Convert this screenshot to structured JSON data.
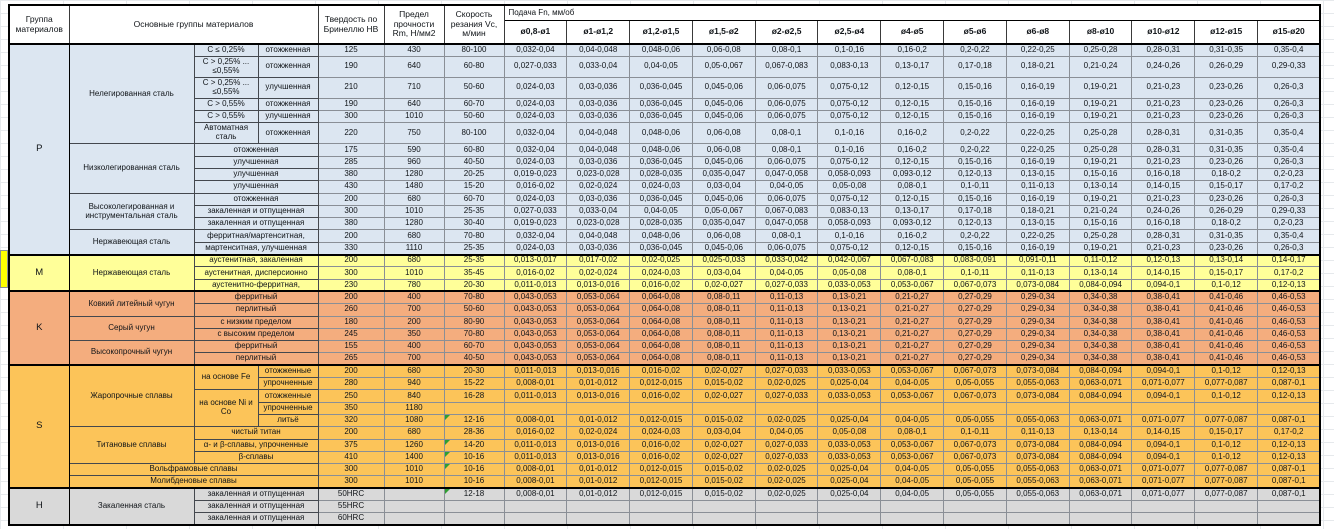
{
  "colors": {
    "group_p": "#dce6f1",
    "group_m": "#ffff99",
    "group_k": "#f4ad7e",
    "group_s": "#fcc459",
    "group_h": "#d9d9d9",
    "marker_green": "#2f9e33",
    "gutter_yellow": "#ffff00"
  },
  "table": {
    "header": {
      "col_group": "Группа материалов",
      "col_main": "Основные группы материалов",
      "col_hardness": "Твердость по Бринеллю НВ",
      "col_strength": "Предел прочности Rm, Н/мм2",
      "col_speed": "Скорость резания Vc, м/мин",
      "feed_title": "Подача Fn, мм/об",
      "feed_cols": [
        "ø0,8-ø1",
        "ø1-ø1,2",
        "ø1,2-ø1,5",
        "ø1,5-ø2",
        "ø2-ø2,5",
        "ø2,5-ø4",
        "ø4-ø5",
        "ø5-ø6",
        "ø6-ø8",
        "ø8-ø10",
        "ø10-ø12",
        "ø12-ø15",
        "ø15-ø20"
      ]
    },
    "feed_sets": {
      "A": [
        "0,032-0,04",
        "0,04-0,048",
        "0,048-0,06",
        "0,06-0,08",
        "0,08-0,1",
        "0,1-0,16",
        "0,16-0,2",
        "0,2-0,22",
        "0,22-0,25",
        "0,25-0,28",
        "0,28-0,31",
        "0,31-0,35",
        "0,35-0,4"
      ],
      "B": [
        "0,027-0,033",
        "0,033-0,04",
        "0,04-0,05",
        "0,05-0,067",
        "0,067-0,083",
        "0,083-0,13",
        "0,13-0,17",
        "0,17-0,18",
        "0,18-0,21",
        "0,21-0,24",
        "0,24-0,26",
        "0,26-0,29",
        "0,29-0,33"
      ],
      "C": [
        "0,024-0,03",
        "0,03-0,036",
        "0,036-0,045",
        "0,045-0,06",
        "0,06-0,075",
        "0,075-0,12",
        "0,12-0,15",
        "0,15-0,16",
        "0,16-0,19",
        "0,19-0,21",
        "0,21-0,23",
        "0,23-0,26",
        "0,26-0,3"
      ],
      "D": [
        "0,019-0,023",
        "0,023-0,028",
        "0,028-0,035",
        "0,035-0,047",
        "0,047-0,058",
        "0,058-0,093",
        "0,093-0,12",
        "0,12-0,13",
        "0,13-0,15",
        "0,15-0,16",
        "0,16-0,18",
        "0,18-0,2",
        "0,2-0,23"
      ],
      "E": [
        "0,016-0,02",
        "0,02-0,024",
        "0,024-0,03",
        "0,03-0,04",
        "0,04-0,05",
        "0,05-0,08",
        "0,08-0,1",
        "0,1-0,11",
        "0,11-0,13",
        "0,13-0,14",
        "0,14-0,15",
        "0,15-0,17",
        "0,17-0,2"
      ],
      "F": [
        "0,013-0,017",
        "0,017-0,02",
        "0,02-0,025",
        "0,025-0,033",
        "0,033-0,042",
        "0,042-0,067",
        "0,067-0,083",
        "0,083-0,091",
        "0,091-0,11",
        "0,11-0,12",
        "0,12-0,13",
        "0,13-0,14",
        "0,14-0,17"
      ],
      "G": [
        "0,011-0,013",
        "0,013-0,016",
        "0,016-0,02",
        "0,02-0,027",
        "0,027-0,033",
        "0,033-0,053",
        "0,053-0,067",
        "0,067-0,073",
        "0,073-0,084",
        "0,084-0,094",
        "0,094-0,1",
        "0,1-0,12",
        "0,12-0,13"
      ],
      "H": [
        "0,043-0,053",
        "0,053-0,064",
        "0,064-0,08",
        "0,08-0,11",
        "0,11-0,13",
        "0,13-0,21",
        "0,21-0,27",
        "0,27-0,29",
        "0,29-0,34",
        "0,34-0,38",
        "0,38-0,41",
        "0,41-0,46",
        "0,46-0,53"
      ],
      "I": [
        "0,008-0,01",
        "0,01-0,012",
        "0,012-0,015",
        "0,015-0,02",
        "0,02-0,025",
        "0,025-0,04",
        "0,04-0,05",
        "0,05-0,055",
        "0,055-0,063",
        "0,063-0,071",
        "0,071-0,077",
        "0,077-0,087",
        "0,087-0,1"
      ],
      "X": [
        "",
        "",
        "",
        "",
        "",
        "",
        "",
        "",
        "",
        "",
        "",
        "",
        ""
      ]
    },
    "rows": [
      {
        "cls": "p",
        "gs": 1,
        "labels": [
          {
            "t": "P",
            "rs": 15,
            "g": 1
          },
          {
            "t": "Нелегированная сталь",
            "rs": 6
          },
          {
            "t": "C ≤ 0,25%"
          },
          {
            "t": "отожженная"
          }
        ],
        "hb": "125",
        "rm": "430",
        "vc": "80-100",
        "feed": "A"
      },
      {
        "cls": "p",
        "tall": 1,
        "labels": [
          {
            "t": "C > 0,25% ... ≤0,55%"
          },
          {
            "t": "отожженная"
          }
        ],
        "hb": "190",
        "rm": "640",
        "vc": "60-80",
        "feed": "B"
      },
      {
        "cls": "p",
        "tall": 1,
        "labels": [
          {
            "t": "C > 0,25% ... ≤0,55%"
          },
          {
            "t": "улучшенная"
          }
        ],
        "hb": "210",
        "rm": "710",
        "vc": "50-60",
        "feed": "C"
      },
      {
        "cls": "p",
        "labels": [
          {
            "t": "C > 0,55%"
          },
          {
            "t": "отожженная"
          }
        ],
        "hb": "190",
        "rm": "640",
        "vc": "60-70",
        "feed": "C"
      },
      {
        "cls": "p",
        "labels": [
          {
            "t": "C > 0,55%"
          },
          {
            "t": "улучшенная"
          }
        ],
        "hb": "300",
        "rm": "1010",
        "vc": "50-60",
        "feed": "C"
      },
      {
        "cls": "p",
        "tall": 1,
        "labels": [
          {
            "t": "Автоматная сталь"
          },
          {
            "t": "отожженная"
          }
        ],
        "hb": "220",
        "rm": "750",
        "vc": "80-100",
        "feed": "A"
      },
      {
        "cls": "p",
        "labels": [
          {
            "t": "Низколегированная сталь",
            "rs": 4
          },
          {
            "t": "отожженная",
            "cs": 2
          }
        ],
        "hb": "175",
        "rm": "590",
        "vc": "60-80",
        "feed": "A"
      },
      {
        "cls": "p",
        "labels": [
          {
            "t": "улучшенная",
            "cs": 2
          }
        ],
        "hb": "285",
        "rm": "960",
        "vc": "40-50",
        "feed": "C"
      },
      {
        "cls": "p",
        "labels": [
          {
            "t": "улучшенная",
            "cs": 2
          }
        ],
        "hb": "380",
        "rm": "1280",
        "vc": "20-25",
        "feed": "D"
      },
      {
        "cls": "p",
        "labels": [
          {
            "t": "улучшенная",
            "cs": 2
          }
        ],
        "hb": "430",
        "rm": "1480",
        "vc": "15-20",
        "feed": "E"
      },
      {
        "cls": "p",
        "labels": [
          {
            "t": "Высоколегированная и инструментальная сталь",
            "rs": 3
          },
          {
            "t": "отожженная",
            "cs": 2
          }
        ],
        "hb": "200",
        "rm": "680",
        "vc": "60-70",
        "feed": "C"
      },
      {
        "cls": "p",
        "labels": [
          {
            "t": "закаленная и отпущенная",
            "cs": 2
          }
        ],
        "hb": "300",
        "rm": "1010",
        "vc": "25-35",
        "feed": "B"
      },
      {
        "cls": "p",
        "labels": [
          {
            "t": "закаленная и отпущенная",
            "cs": 2
          }
        ],
        "hb": "380",
        "rm": "1280",
        "vc": "30-40",
        "feed": "D"
      },
      {
        "cls": "p",
        "labels": [
          {
            "t": "Нержавеющая сталь",
            "rs": 2
          },
          {
            "t": "ферритная/мартенситная,",
            "cs": 2
          }
        ],
        "hb": "200",
        "rm": "680",
        "vc": "70-80",
        "feed": "A"
      },
      {
        "cls": "p",
        "labels": [
          {
            "t": "мартенситная, улучшенная",
            "cs": 2
          }
        ],
        "hb": "330",
        "rm": "1110",
        "vc": "25-35",
        "feed": "C"
      },
      {
        "cls": "m",
        "gs": 1,
        "labels": [
          {
            "t": "M",
            "rs": 3,
            "g": 1
          },
          {
            "t": "Нержавеющая сталь",
            "rs": 3
          },
          {
            "t": "аустенитная, закаленная",
            "cs": 2
          }
        ],
        "hb": "200",
        "rm": "680",
        "vc": "25-35",
        "feed": "F"
      },
      {
        "cls": "m",
        "labels": [
          {
            "t": "аустенитная, дисперсионно",
            "cs": 2
          }
        ],
        "hb": "300",
        "rm": "1010",
        "vc": "35-45",
        "feed": "E"
      },
      {
        "cls": "m",
        "labels": [
          {
            "t": "аустенитно-ферритная,",
            "cs": 2
          }
        ],
        "hb": "230",
        "rm": "780",
        "vc": "20-30",
        "feed": "G"
      },
      {
        "cls": "k",
        "gs": 1,
        "labels": [
          {
            "t": "K",
            "rs": 6,
            "g": 1
          },
          {
            "t": "Ковкий литейный чугун",
            "rs": 2
          },
          {
            "t": "ферритный",
            "cs": 2
          }
        ],
        "hb": "200",
        "rm": "400",
        "vc": "70-80",
        "feed": "H"
      },
      {
        "cls": "k",
        "labels": [
          {
            "t": "перлитный",
            "cs": 2
          }
        ],
        "hb": "260",
        "rm": "700",
        "vc": "50-60",
        "feed": "H"
      },
      {
        "cls": "k",
        "labels": [
          {
            "t": "Серый чугун",
            "rs": 2
          },
          {
            "t": "с низким пределом",
            "cs": 2
          }
        ],
        "hb": "180",
        "rm": "200",
        "vc": "80-90",
        "feed": "H"
      },
      {
        "cls": "k",
        "labels": [
          {
            "t": "с высоким пределом",
            "cs": 2
          }
        ],
        "hb": "245",
        "rm": "350",
        "vc": "70-80",
        "feed": "H"
      },
      {
        "cls": "k",
        "labels": [
          {
            "t": "Высокопрочный чугун",
            "rs": 2
          },
          {
            "t": "ферритный",
            "cs": 2
          }
        ],
        "hb": "155",
        "rm": "400",
        "vc": "60-70",
        "feed": "H"
      },
      {
        "cls": "k",
        "labels": [
          {
            "t": "перлитный",
            "cs": 2
          }
        ],
        "hb": "265",
        "rm": "700",
        "vc": "40-50",
        "feed": "H"
      },
      {
        "cls": "s",
        "gs": 1,
        "labels": [
          {
            "t": "S",
            "rs": 10,
            "g": 1
          },
          {
            "t": "Жаропрочные сплавы",
            "rs": 5
          },
          {
            "t": "на основе Fe",
            "rs": 2
          },
          {
            "t": "отожженные"
          }
        ],
        "hb": "200",
        "rm": "680",
        "vc": "20-30",
        "feed": "G"
      },
      {
        "cls": "s",
        "labels": [
          {
            "t": "упрочненные"
          }
        ],
        "hb": "280",
        "rm": "940",
        "vc": "15-22",
        "feed": "I"
      },
      {
        "cls": "s",
        "labels": [
          {
            "t": "на основе Ni и Со",
            "rs": 3
          },
          {
            "t": "отожженные"
          }
        ],
        "hb": "250",
        "rm": "840",
        "vc": "16-28",
        "feed": "G"
      },
      {
        "cls": "s",
        "labels": [
          {
            "t": "упрочненные"
          }
        ],
        "hb": "350",
        "rm": "1180",
        "vc": "",
        "feed": "X"
      },
      {
        "cls": "s",
        "labels": [
          {
            "t": "литьё"
          }
        ],
        "hb": "320",
        "rm": "1080",
        "vc": "12-16",
        "feed": "I",
        "m": 1
      },
      {
        "cls": "s",
        "labels": [
          {
            "t": "Титановые сплавы",
            "rs": 3
          },
          {
            "t": "чистый титан",
            "cs": 2
          }
        ],
        "hb": "200",
        "rm": "680",
        "vc": "28-36",
        "feed": "E"
      },
      {
        "cls": "s",
        "labels": [
          {
            "t": "α- и β-сплавы, упрочненные",
            "cs": 2
          }
        ],
        "hb": "375",
        "rm": "1260",
        "vc": "14-20",
        "feed": "G",
        "m": 1
      },
      {
        "cls": "s",
        "labels": [
          {
            "t": "β-сплавы",
            "cs": 2
          }
        ],
        "hb": "410",
        "rm": "1400",
        "vc": "10-16",
        "feed": "G",
        "m": 1
      },
      {
        "cls": "s",
        "labels": [
          {
            "t": "Вольфрамовые сплавы",
            "cs": 3
          }
        ],
        "hb": "300",
        "rm": "1010",
        "vc": "10-16",
        "feed": "I",
        "m": 1
      },
      {
        "cls": "s",
        "labels": [
          {
            "t": "Молибденовые сплавы",
            "cs": 3
          }
        ],
        "hb": "300",
        "rm": "1010",
        "vc": "10-16",
        "feed": "I"
      },
      {
        "cls": "h",
        "gs": 1,
        "labels": [
          {
            "t": "H",
            "rs": 3,
            "g": 1
          },
          {
            "t": "Закаленная сталь",
            "rs": 3
          },
          {
            "t": "закаленная и отпущенная",
            "cs": 2
          }
        ],
        "hb": "50HRC",
        "rm": "",
        "vc": "12-18",
        "feed": "I",
        "m": 1
      },
      {
        "cls": "h",
        "labels": [
          {
            "t": "закаленная и отпущенная",
            "cs": 2
          }
        ],
        "hb": "55HRC",
        "rm": "",
        "vc": "",
        "feed": "X"
      },
      {
        "cls": "h",
        "labels": [
          {
            "t": "закаленная и отпущенная",
            "cs": 2
          }
        ],
        "hb": "60HRC",
        "rm": "",
        "vc": "",
        "feed": "X"
      }
    ]
  }
}
